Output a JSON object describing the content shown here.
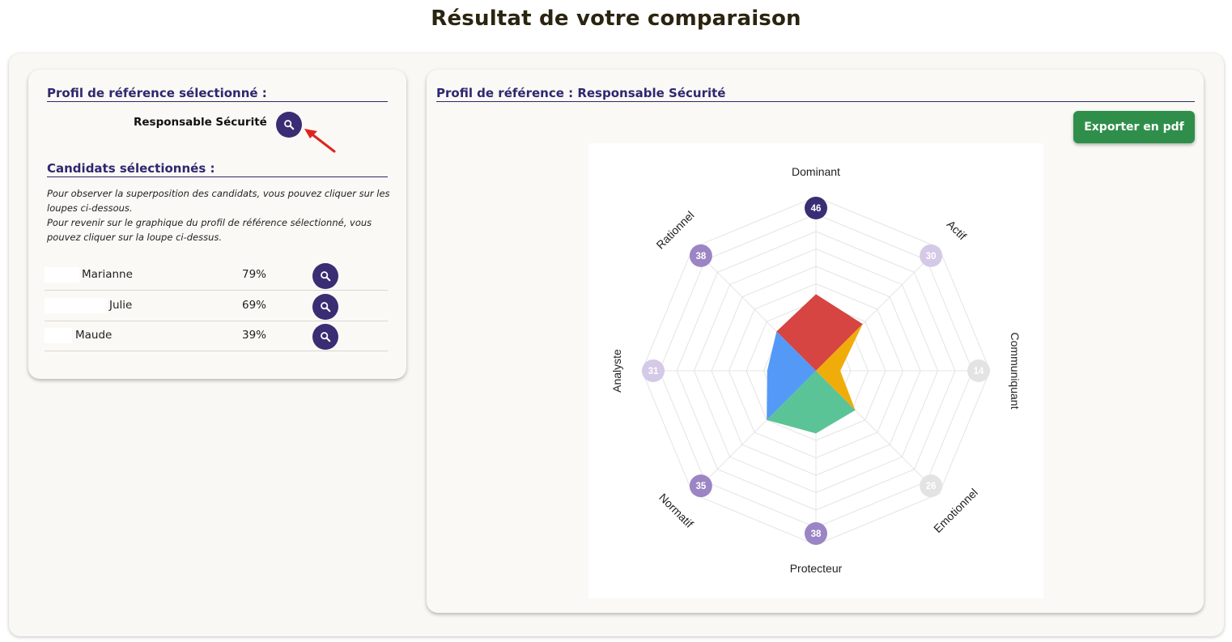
{
  "page": {
    "title": "Résultat de votre comparaison"
  },
  "left": {
    "reference_heading": "Profil de référence sélectionné :",
    "reference_name": "Responsable Sécurité",
    "candidates_heading": "Candidats sélectionnés :",
    "hint_1": "Pour observer la superposition des candidats, vous pouvez cliquer sur les loupes ci-dessous.",
    "hint_2": "Pour revenir sur le graphique du profil de référence sélectionné, vous pouvez cliquer sur la loupe ci-dessus.",
    "candidates": [
      {
        "name": "Marianne",
        "score": "79%"
      },
      {
        "name": "Julie",
        "score": "69%"
      },
      {
        "name": "Maude",
        "score": "39%"
      }
    ]
  },
  "right": {
    "heading": "Profil de référence : Responsable Sécurité",
    "export_label": "Exporter en pdf"
  },
  "chart_data": {
    "type": "radar",
    "axes": [
      "Dominant",
      "Actif",
      "Communiquant",
      "Emotionnel",
      "Protecteur",
      "Normatif",
      "Analyste",
      "Rationnel"
    ],
    "scale": [
      0,
      50
    ],
    "grid": true,
    "axis_values": [
      46,
      30,
      14,
      26,
      38,
      35,
      31,
      38
    ],
    "point_colors": [
      "#3a2d73",
      "#d4c9e6",
      "#e3e3e3",
      "#e3e3e3",
      "#9b85c4",
      "#9b85c4",
      "#d4c9e6",
      "#9b85c4"
    ],
    "sectors": [
      {
        "color": "#d64541",
        "values": {
          "Rationnel": 16,
          "Dominant": 22,
          "Actif": 19
        }
      },
      {
        "color": "#f0ad0a",
        "values": {
          "Actif": 19,
          "Communiquant": 7,
          "Emotionnel": 16
        }
      },
      {
        "color": "#5bc497",
        "values": {
          "Emotionnel": 16,
          "Protecteur": 18,
          "Normatif": 20
        }
      },
      {
        "color": "#5599f7",
        "values": {
          "Normatif": 20,
          "Analyste": 14,
          "Rationnel": 16
        }
      }
    ]
  }
}
